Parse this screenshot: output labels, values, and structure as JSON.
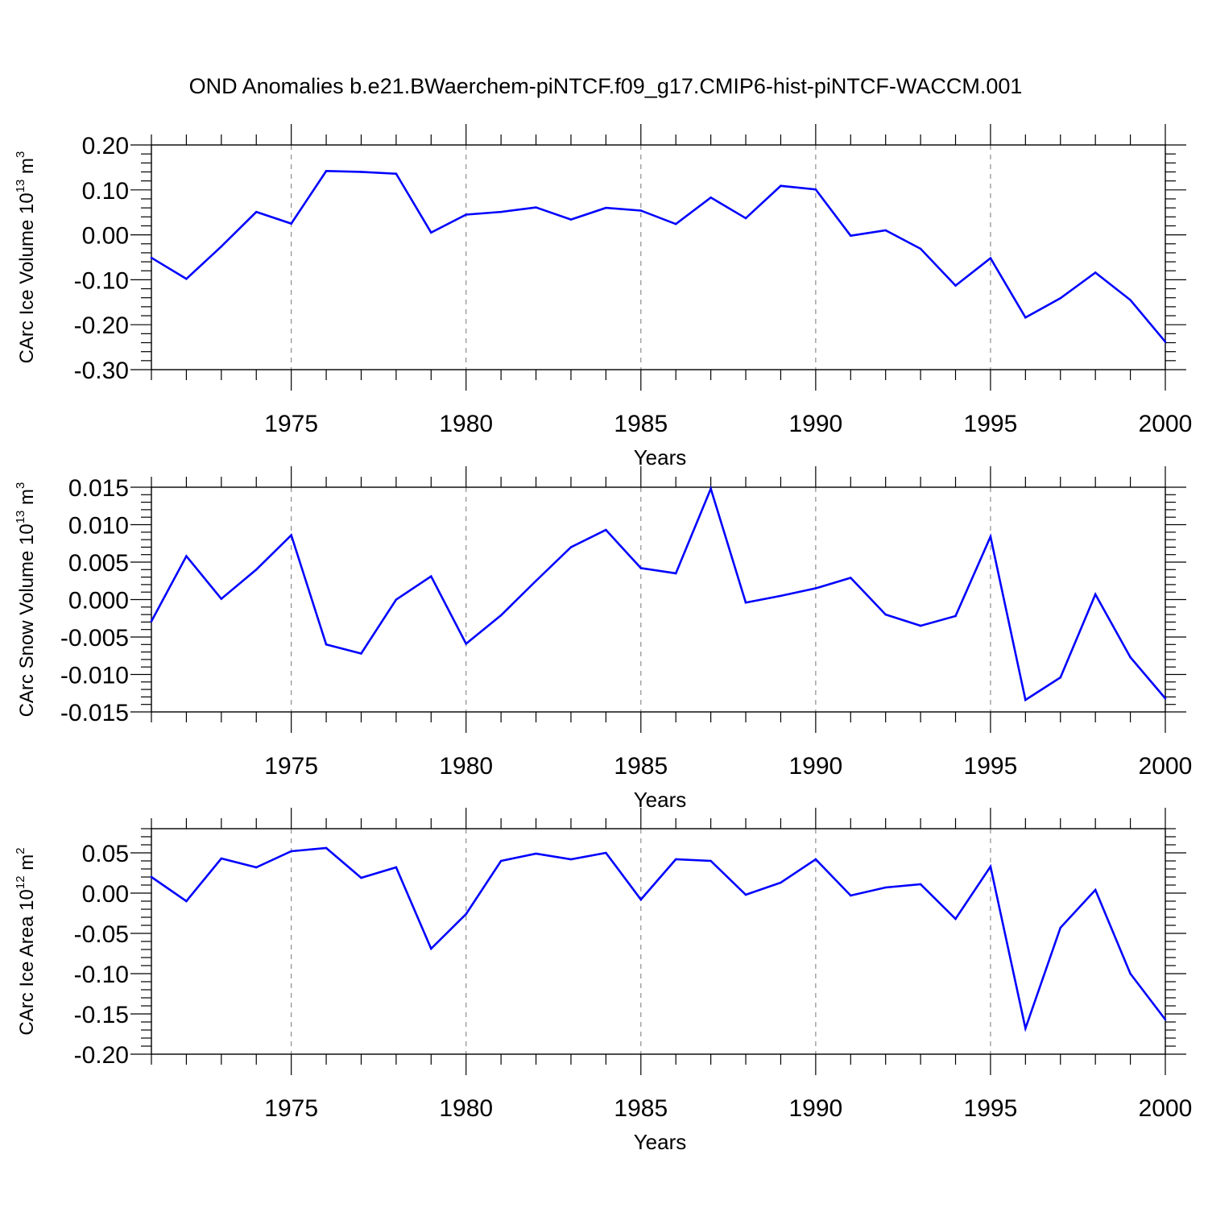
{
  "title": "OND Anomalies b.e21.BWaerchem-piNTCF.f09_g17.CMIP6-hist-piNTCF-WACCM.001",
  "colors": {
    "line": "#0000ff",
    "axis": "#000000",
    "grid": "#8c8c8c",
    "background": "#ffffff"
  },
  "chart_data": [
    {
      "type": "line",
      "ylabel": {
        "main": "CArc Ice Volume 10",
        "sup": "13",
        "unit": " m",
        "unit_sup": "3"
      },
      "xlabel": "Years",
      "xlim": [
        1971,
        2000
      ],
      "ylim": [
        -0.3,
        0.2
      ],
      "ytick_values": [
        -0.3,
        -0.2,
        -0.1,
        0.0,
        0.1,
        0.2
      ],
      "ytick_labels": [
        "-0.30",
        "-0.20",
        "-0.10",
        "0.00",
        "0.10",
        "0.20"
      ],
      "xtick_values": [
        1975,
        1980,
        1985,
        1990,
        1995,
        2000
      ],
      "xtick_labels": [
        "1975",
        "1980",
        "1985",
        "1990",
        "1995",
        "2000"
      ],
      "grid_x": [
        1975,
        1980,
        1985,
        1990,
        1995
      ],
      "x": [
        1971,
        1972,
        1973,
        1974,
        1975,
        1976,
        1977,
        1978,
        1979,
        1980,
        1981,
        1982,
        1983,
        1984,
        1985,
        1986,
        1987,
        1988,
        1989,
        1990,
        1991,
        1992,
        1993,
        1994,
        1995,
        1996,
        1997,
        1998,
        1999,
        2000
      ],
      "series": [
        {
          "name": "CArc Ice Volume",
          "values": [
            -0.051,
            -0.098,
            -0.026,
            0.051,
            0.025,
            0.142,
            0.14,
            0.136,
            0.005,
            0.045,
            0.051,
            0.061,
            0.034,
            0.06,
            0.054,
            0.024,
            0.083,
            0.037,
            0.109,
            0.101,
            -0.002,
            0.01,
            -0.031,
            -0.113,
            -0.052,
            -0.184,
            -0.141,
            -0.084,
            -0.145,
            -0.238
          ]
        }
      ]
    },
    {
      "type": "line",
      "ylabel": {
        "main": "CArc Snow Volume 10",
        "sup": "13",
        "unit": " m",
        "unit_sup": "3"
      },
      "xlabel": "Years",
      "xlim": [
        1971,
        2000
      ],
      "ylim": [
        -0.015,
        0.015
      ],
      "ytick_values": [
        -0.015,
        -0.01,
        -0.005,
        0.0,
        0.005,
        0.01,
        0.015
      ],
      "ytick_labels": [
        "-0.015",
        "-0.010",
        "-0.005",
        "0.000",
        "0.005",
        "0.010",
        "0.015"
      ],
      "xtick_values": [
        1975,
        1980,
        1985,
        1990,
        1995,
        2000
      ],
      "xtick_labels": [
        "1975",
        "1980",
        "1985",
        "1990",
        "1995",
        "2000"
      ],
      "grid_x": [
        1975,
        1980,
        1985,
        1990,
        1995
      ],
      "x": [
        1971,
        1972,
        1973,
        1974,
        1975,
        1976,
        1977,
        1978,
        1979,
        1980,
        1981,
        1982,
        1983,
        1984,
        1985,
        1986,
        1987,
        1988,
        1989,
        1990,
        1991,
        1992,
        1993,
        1994,
        1995,
        1996,
        1997,
        1998,
        1999,
        2000
      ],
      "series": [
        {
          "name": "CArc Snow Volume",
          "values": [
            -0.0029,
            0.0058,
            0.0001,
            0.004,
            0.0086,
            -0.006,
            -0.0072,
            0.0,
            0.0031,
            -0.0059,
            -0.0021,
            0.0025,
            0.007,
            0.0093,
            0.0042,
            0.0035,
            0.0148,
            -0.0004,
            0.0005,
            0.0015,
            0.0029,
            -0.002,
            -0.0035,
            -0.0022,
            0.0084,
            -0.0134,
            -0.0104,
            0.0007,
            -0.0077,
            -0.0132
          ]
        }
      ]
    },
    {
      "type": "line",
      "ylabel": {
        "main": "CArc Ice Area 10",
        "sup": "12",
        "unit": " m",
        "unit_sup": "2"
      },
      "xlabel": "Years",
      "xlim": [
        1971,
        2000
      ],
      "ylim": [
        -0.2,
        0.08
      ],
      "ytick_values": [
        -0.2,
        -0.15,
        -0.1,
        -0.05,
        0.0,
        0.05
      ],
      "ytick_labels": [
        "-0.20",
        "-0.15",
        "-0.10",
        "-0.05",
        "0.00",
        "0.05"
      ],
      "xtick_values": [
        1975,
        1980,
        1985,
        1990,
        1995,
        2000
      ],
      "xtick_labels": [
        "1975",
        "1980",
        "1985",
        "1990",
        "1995",
        "2000"
      ],
      "grid_x": [
        1975,
        1980,
        1985,
        1990,
        1995
      ],
      "x": [
        1971,
        1972,
        1973,
        1974,
        1975,
        1976,
        1977,
        1978,
        1979,
        1980,
        1981,
        1982,
        1983,
        1984,
        1985,
        1986,
        1987,
        1988,
        1989,
        1990,
        1991,
        1992,
        1993,
        1994,
        1995,
        1996,
        1997,
        1998,
        1999,
        2000
      ],
      "series": [
        {
          "name": "CArc Ice Area",
          "values": [
            0.02,
            -0.01,
            0.043,
            0.032,
            0.052,
            0.056,
            0.019,
            0.032,
            -0.069,
            -0.026,
            0.04,
            0.049,
            0.042,
            0.05,
            -0.008,
            0.042,
            0.04,
            -0.002,
            0.013,
            0.042,
            -0.003,
            0.007,
            0.011,
            -0.032,
            0.033,
            -0.168,
            -0.043,
            0.004,
            -0.1,
            -0.157
          ]
        }
      ]
    }
  ]
}
